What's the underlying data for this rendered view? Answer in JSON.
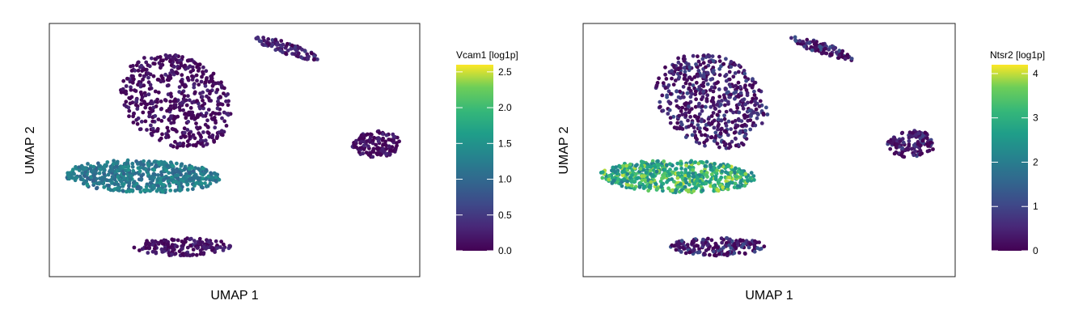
{
  "chart_data": [
    {
      "type": "scatter",
      "title": "",
      "xlabel": "UMAP 1",
      "ylabel": "UMAP 2",
      "colorbar": {
        "label": "Vcam1 [log1p]",
        "min": 0.0,
        "max": 2.6,
        "ticks": [
          0.0,
          0.5,
          1.0,
          1.5,
          2.0,
          2.5
        ],
        "tick_labels": [
          "0.0",
          "0.5",
          "1.0",
          "1.5",
          "2.0",
          "2.5"
        ],
        "colormap": "viridis"
      },
      "grid": false,
      "clusters": [
        {
          "cluster": "top-center-large",
          "mean_expression": 0.05
        },
        {
          "cluster": "top-right-small",
          "mean_expression": 0.25
        },
        {
          "cluster": "right-middle",
          "mean_expression": 0.05
        },
        {
          "cluster": "left-middle-elongated",
          "mean_expression": 1.2
        },
        {
          "cluster": "bottom-center",
          "mean_expression": 0.1
        }
      ]
    },
    {
      "type": "scatter",
      "title": "",
      "xlabel": "UMAP 1",
      "ylabel": "UMAP 2",
      "colorbar": {
        "label": "Ntsr2 [log1p]",
        "min": 0,
        "max": 4.2,
        "ticks": [
          0,
          1,
          2,
          3,
          4
        ],
        "tick_labels": [
          "0",
          "1",
          "2",
          "3",
          "4"
        ],
        "colormap": "viridis"
      },
      "grid": false,
      "clusters": [
        {
          "cluster": "top-center-large",
          "mean_expression": 0.2
        },
        {
          "cluster": "top-right-small",
          "mean_expression": 0.3
        },
        {
          "cluster": "right-middle",
          "mean_expression": 0.1
        },
        {
          "cluster": "left-middle-elongated",
          "mean_expression": 3.0
        },
        {
          "cluster": "bottom-center",
          "mean_expression": 0.2
        }
      ]
    }
  ]
}
